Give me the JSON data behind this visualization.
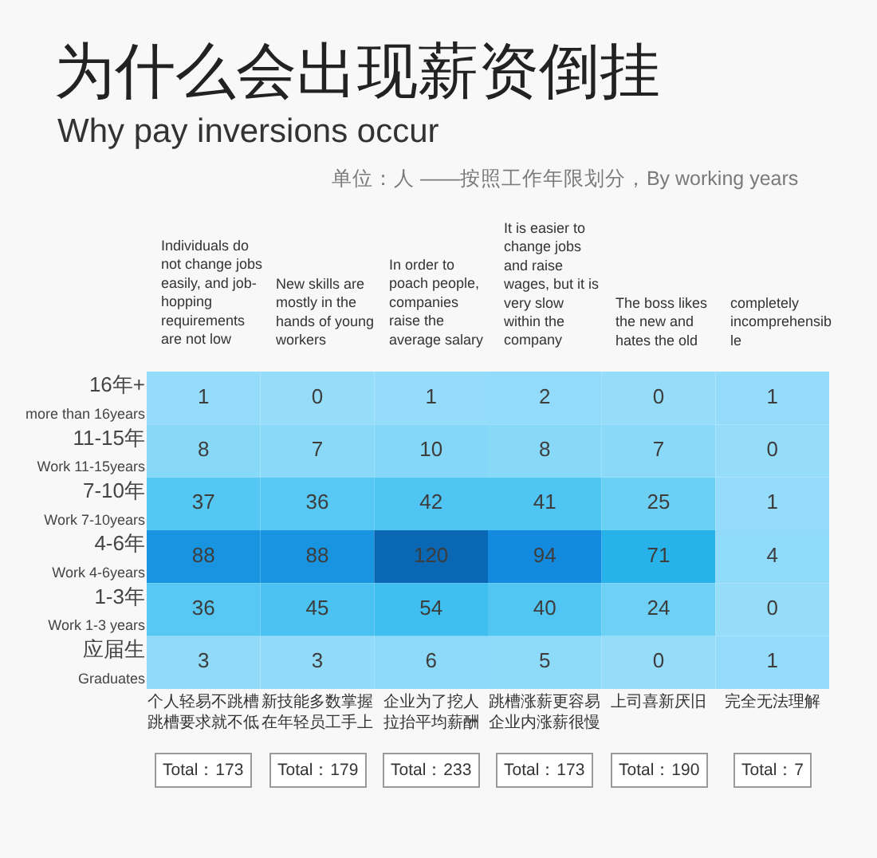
{
  "chart_data": {
    "type": "heatmap",
    "title": "为什么会出现薪资倒挂",
    "subtitle": "Why pay inversions occur",
    "annotations": [
      "单位：人 ——按照工作年限划分，By working years",
      "Individuals do not change jobs easily, and job-hopping requirements are not low",
      "New skills are mostly in the hands of young workers",
      "In order to poach people, companies raise the average salary",
      "It is easier to change jobs and raise wages, but it is very slow within the company",
      "The boss likes the new and hates the old",
      "completely incomprehensible"
    ],
    "categories": [
      "个人轻易不跳槽跳槽要求就不低",
      "新技能多数掌握在年轻员工手上",
      "企业为了挖人拉抬平均薪酬",
      "跳槽涨薪更容易企业内涨薪很慢",
      "上司喜新厌旧",
      "完全无法理解"
    ],
    "y_categories": [
      "16年+ more than 16years",
      "11-15年 Work 11-15years",
      "7-10年 Work 7-10years",
      "4-6年 Work 4-6years",
      "1-3年 Work 1-3 years",
      "应届生 Graduates"
    ],
    "cells": [
      [
        1,
        0,
        1,
        2,
        0,
        1
      ],
      [
        8,
        7,
        10,
        8,
        7,
        0
      ],
      [
        37,
        36,
        42,
        41,
        25,
        1
      ],
      [
        88,
        88,
        120,
        94,
        71,
        4
      ],
      [
        36,
        45,
        54,
        40,
        24,
        0
      ],
      [
        3,
        3,
        6,
        5,
        0,
        1
      ]
    ],
    "colors": [
      [
        "#95dcfa",
        "#96ddfa",
        "#95dcfa",
        "#93dbfa",
        "#96ddfa",
        "#95dcfa"
      ],
      [
        "#88d8f8",
        "#8ad9f8",
        "#84d7f8",
        "#88d8f8",
        "#8ad9f8",
        "#96ddfa"
      ],
      [
        "#54c7f3",
        "#56c8f3",
        "#4ec5f3",
        "#4fc5f3",
        "#6cd0f5",
        "#95dcfa"
      ],
      [
        "#1894e1",
        "#1894e1",
        "#0967b3",
        "#138ade",
        "#27b3ea",
        "#8fdbf9"
      ],
      [
        "#56c8f3",
        "#4ac3f2",
        "#3fbef0",
        "#51c6f3",
        "#6ed0f5",
        "#96ddfa"
      ],
      [
        "#91dbf9",
        "#91dbf9",
        "#8cd9f9",
        "#8edaf9",
        "#96ddfa",
        "#95dcfa"
      ]
    ],
    "data_labels": true,
    "totals": [
      "Total：173",
      "Total：179",
      "Total：233",
      "Total：173",
      "Total：190",
      "Total：7"
    ]
  }
}
